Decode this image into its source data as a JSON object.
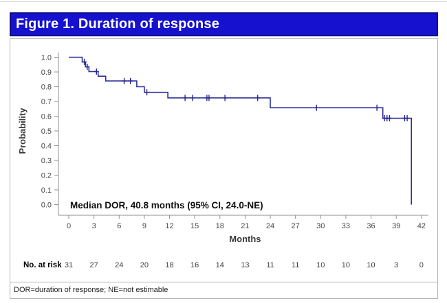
{
  "header": {
    "title": "Figure 1. Duration of response"
  },
  "footer": {
    "note": "DOR=duration of response; NE=not estimable"
  },
  "colors": {
    "header_bg": "#1511cf",
    "header_border": "#0d0d86",
    "curve": "#2f2f9d",
    "censor": "#24248f",
    "axis": "#8f8f8f",
    "box_border": "#b3b3b3"
  },
  "chart_data": {
    "type": "line",
    "subtype": "kaplan_meier_step",
    "title": "Figure 1. Duration of response",
    "xlabel": "Months",
    "ylabel": "Probability",
    "xlim": [
      0,
      42
    ],
    "ylim": [
      0.0,
      1.0
    ],
    "grid": false,
    "legend": "none",
    "x_ticks": [
      0,
      3,
      6,
      9,
      12,
      15,
      18,
      21,
      24,
      27,
      30,
      33,
      36,
      39,
      42
    ],
    "y_ticks": [
      0.0,
      0.1,
      0.2,
      0.3,
      0.4,
      0.5,
      0.6,
      0.7,
      0.8,
      0.9,
      1.0
    ],
    "annotation": "Median DOR, 40.8 months (95% CI, 24.0-NE)",
    "series": [
      {
        "name": "Duration of response",
        "color": "#2f2f9d",
        "start": [
          0,
          1.0
        ],
        "steps": [
          [
            1.6,
            0.968
          ],
          [
            2.0,
            0.935
          ],
          [
            2.4,
            0.903
          ],
          [
            3.5,
            0.871
          ],
          [
            4.4,
            0.839
          ],
          [
            8.1,
            0.8
          ],
          [
            9.0,
            0.762
          ],
          [
            11.8,
            0.724
          ],
          [
            24.0,
            0.657
          ],
          [
            37.4,
            0.586
          ],
          [
            40.8,
            0.0
          ]
        ],
        "censor_marks": [
          [
            1.85,
            0.968
          ],
          [
            2.2,
            0.935
          ],
          [
            3.3,
            0.903
          ],
          [
            6.6,
            0.839
          ],
          [
            7.35,
            0.839
          ],
          [
            9.3,
            0.762
          ],
          [
            13.85,
            0.724
          ],
          [
            14.75,
            0.724
          ],
          [
            16.45,
            0.724
          ],
          [
            16.7,
            0.724
          ],
          [
            18.6,
            0.724
          ],
          [
            22.5,
            0.724
          ],
          [
            29.5,
            0.657
          ],
          [
            36.7,
            0.657
          ],
          [
            37.6,
            0.586
          ],
          [
            37.9,
            0.586
          ],
          [
            38.2,
            0.586
          ],
          [
            40.0,
            0.586
          ],
          [
            40.3,
            0.586
          ]
        ]
      }
    ],
    "at_risk": {
      "label": "No. at risk",
      "times": [
        0,
        3,
        6,
        9,
        12,
        15,
        18,
        21,
        24,
        27,
        30,
        33,
        36,
        39,
        42
      ],
      "values": [
        31,
        27,
        24,
        20,
        18,
        16,
        14,
        13,
        11,
        11,
        10,
        10,
        10,
        3,
        0
      ]
    }
  }
}
